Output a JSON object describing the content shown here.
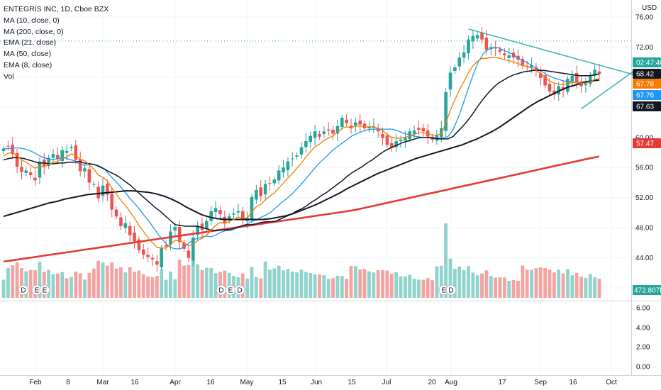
{
  "header": {
    "title": "ENTEGRIS INC, 1D, Cboe BZX",
    "currency": "USD"
  },
  "legend": [
    "MA (10, close, 0)",
    "MA (200, close, 0)",
    "EMA (21, close)",
    "MA (50, close)",
    "EMA (8, close)",
    "Vol"
  ],
  "colors": {
    "up": "#26a69a",
    "down": "#ef5350",
    "ma10": "#2196f3",
    "ma200": "#e53935",
    "ema21": "#131722",
    "ma50": "#131722",
    "ema8": "#f57c00",
    "trend": "#3fb8b0",
    "vol_up": "#8fd3cc",
    "vol_down": "#f5a3a1"
  },
  "price_tags": [
    {
      "text": "02:47:48",
      "value": 72.8,
      "color": "#26a69a"
    },
    {
      "text": "68.42",
      "value": 68.42,
      "color": "#131722"
    },
    {
      "text": "67.78",
      "value": 67.78,
      "color": "#f57c00"
    },
    {
      "text": "67.76",
      "value": 67.76,
      "color": "#2196f3"
    },
    {
      "text": "67.63",
      "value": 67.63,
      "color": "#131722"
    },
    {
      "text": "57.47",
      "value": 57.47,
      "color": "#e53935"
    }
  ],
  "volume_tag": "472.807K",
  "event_markers": [
    {
      "label": "D",
      "date": "Feb 1"
    },
    {
      "label": "E",
      "date": "Feb 4"
    },
    {
      "label": "E",
      "date": "Feb 8"
    },
    {
      "label": "D",
      "date": "Apr 26"
    },
    {
      "label": "E",
      "date": "May 7"
    },
    {
      "label": "D",
      "date": "May 10"
    },
    {
      "label": "E",
      "date": "Jul 28"
    },
    {
      "label": "D",
      "date": "Jul 29"
    }
  ],
  "chart_data": {
    "type": "candlestick",
    "title": "ENTEGRIS INC, 1D, Cboe BZX",
    "price_axis": {
      "ticks": [
        "76.00",
        "72.00",
        "68.00",
        "64.00",
        "60.00",
        "56.00",
        "52.00",
        "48.00",
        "44.00",
        "40.00"
      ],
      "ylim": [
        38.5,
        77.5
      ]
    },
    "oscillator_axis": {
      "ticks": [
        "6.00",
        "4.00",
        "2.00",
        "0.00"
      ]
    },
    "time_axis": [
      "Feb",
      "8",
      "Mar",
      "16",
      "Apr",
      "16",
      "May",
      "15",
      "Jun",
      "15",
      "Jul",
      "20",
      "Aug",
      "17",
      "Sep",
      "16",
      "Oct"
    ],
    "series": [
      {
        "name": "Price",
        "kind": "candles",
        "close": [
          58.5,
          58.8,
          57.8,
          56.1,
          55.4,
          55.6,
          55.0,
          54.3,
          56.8,
          56.1,
          57.3,
          57.8,
          57.1,
          58.3,
          58.2,
          58.7,
          57.0,
          55.5,
          55.9,
          54.0,
          53.8,
          51.9,
          53.6,
          52.4,
          50.4,
          49.5,
          48.2,
          48.6,
          47.0,
          46.2,
          45.0,
          44.4,
          44.1,
          43.8,
          43.1,
          45.3,
          45.5,
          47.5,
          48.1,
          46.1,
          45.2,
          44.0,
          46.7,
          48.3,
          47.7,
          48.9,
          50.2,
          50.6,
          49.8,
          48.6,
          49.5,
          49.9,
          50.2,
          49.0,
          49.3,
          52.1,
          53.0,
          52.2,
          53.8,
          53.9,
          54.4,
          55.6,
          56.0,
          56.8,
          57.2,
          57.6,
          58.7,
          59.5,
          60.2,
          60.8,
          60.1,
          60.8,
          60.9,
          60.5,
          61.5,
          62.6,
          61.9,
          61.2,
          62.0,
          61.7,
          61.2,
          61.4,
          61.5,
          60.8,
          59.9,
          59.0,
          58.6,
          59.5,
          59.7,
          60.0,
          60.8,
          60.9,
          61.0,
          60.8,
          60.1,
          59.7,
          60.3,
          61.2,
          66.0,
          68.6,
          69.3,
          70.6,
          71.3,
          73.0,
          73.5,
          73.6,
          73.0,
          71.6,
          72.0,
          71.8,
          71.4,
          70.9,
          70.9,
          70.6,
          70.3,
          69.5,
          69.4,
          69.6,
          68.9,
          67.9,
          66.9,
          66.1,
          65.7,
          66.8,
          66.3,
          67.8,
          68.2,
          67.2,
          66.8,
          67.1,
          68.3,
          69.0,
          68.42
        ]
      },
      {
        "name": "MA 10",
        "kind": "line",
        "values": [
          58.5,
          58.5,
          58.6,
          58.6,
          58.5,
          58.3,
          58.0,
          57.6,
          57.3,
          57.1,
          57.1,
          57.2,
          57.3,
          57.1,
          56.9,
          56.5,
          56.3,
          56.4,
          56.4,
          56.2,
          55.8,
          55.0,
          54.3,
          53.6,
          52.8,
          51.9,
          51.2,
          50.4,
          49.5,
          48.7,
          47.7,
          46.8,
          46.0,
          45.4,
          45.2,
          45.2,
          45.6,
          46.1,
          46.5,
          46.7,
          46.9,
          46.8,
          47.0,
          47.4,
          47.6,
          47.6,
          47.9,
          48.1,
          48.4,
          48.8,
          49.0,
          49.4,
          49.7,
          50.1,
          50.7,
          51.3,
          51.8,
          52.4,
          53.1,
          53.8,
          54.6,
          55.4,
          56.2,
          56.9,
          57.5,
          58.2,
          58.7,
          59.2,
          59.7,
          60.2,
          60.5,
          60.8,
          61.0,
          61.1,
          61.1,
          61.1,
          61.1,
          61.1,
          60.9,
          60.6,
          60.4,
          60.2,
          60.1,
          60.0,
          60.0,
          60.0,
          59.9,
          59.9,
          60.1,
          61.0,
          62.5,
          64.4,
          66.4,
          68.3,
          70.0,
          71.1,
          71.7,
          71.9,
          71.9,
          71.6,
          71.3,
          71.0,
          70.5,
          70.2,
          69.8,
          69.4,
          69.0,
          68.6,
          68.2,
          67.9,
          67.7,
          67.5,
          67.4,
          67.3,
          67.3,
          67.4,
          67.5,
          67.6,
          67.76
        ]
      },
      {
        "name": "MA 200",
        "kind": "line",
        "values": [
          43.5,
          43.7,
          43.9,
          44.1,
          44.3,
          44.5,
          44.7,
          44.9,
          45.1,
          45.3,
          45.5,
          45.7,
          45.9,
          46.1,
          46.3,
          46.5,
          46.7,
          46.9,
          47.1,
          47.3,
          47.5,
          47.7,
          47.9,
          48.1,
          48.3,
          48.5,
          48.7,
          48.9,
          49.1,
          49.3,
          49.5,
          49.7,
          49.9,
          50.1,
          50.3,
          50.6,
          50.9,
          51.2,
          51.5,
          51.8,
          52.1,
          52.4,
          52.7,
          53.0,
          53.3,
          53.6,
          53.9,
          54.2,
          54.5,
          54.8,
          55.1,
          55.4,
          55.7,
          56.0,
          56.3,
          56.6,
          56.9,
          57.2,
          57.47
        ]
      },
      {
        "name": "EMA 21",
        "kind": "line",
        "values": [
          57.0,
          57.2,
          57.3,
          57.3,
          57.2,
          57.0,
          56.8,
          56.6,
          56.6,
          56.5,
          56.5,
          56.6,
          56.6,
          56.7,
          56.7,
          56.8,
          56.6,
          56.5,
          56.4,
          56.1,
          55.8,
          55.4,
          55.1,
          54.7,
          54.2,
          53.7,
          53.1,
          52.5,
          51.9,
          51.3,
          50.7,
          50.2,
          49.6,
          49.0,
          48.4,
          48.3,
          48.2,
          48.2,
          48.2,
          48.1,
          47.9,
          47.7,
          47.6,
          47.7,
          47.7,
          47.8,
          48.0,
          48.2,
          48.4,
          48.4,
          48.5,
          48.7,
          48.8,
          48.8,
          48.9,
          49.2,
          49.5,
          49.8,
          50.2,
          50.5,
          50.9,
          51.4,
          51.8,
          52.3,
          52.7,
          53.2,
          53.7,
          54.2,
          54.8,
          55.3,
          55.7,
          56.1,
          56.6,
          57.0,
          57.5,
          58.0,
          58.4,
          58.7,
          59.0,
          59.3,
          59.5,
          59.7,
          59.9,
          60.0,
          60.0,
          59.9,
          59.8,
          59.8,
          59.8,
          60.1,
          60.8,
          61.5,
          62.3,
          63.2,
          64.2,
          65.1,
          65.9,
          66.6,
          67.2,
          67.6,
          68.0,
          68.3,
          68.5,
          68.7,
          68.8,
          68.9,
          68.9,
          68.9,
          68.8,
          68.7,
          68.6,
          68.5,
          68.4,
          68.3,
          68.2,
          68.2,
          68.2,
          68.3,
          68.42
        ]
      },
      {
        "name": "MA 50",
        "kind": "line",
        "values": [
          49.5,
          49.8,
          50.1,
          50.4,
          50.7,
          51.0,
          51.3,
          51.5,
          51.8,
          52.0,
          52.2,
          52.4,
          52.5,
          52.6,
          52.7,
          52.8,
          52.9,
          52.9,
          52.8,
          52.7,
          52.5,
          52.2,
          51.8,
          51.3,
          50.7,
          50.2,
          49.7,
          49.4,
          49.2,
          49.1,
          49.1,
          49.1,
          49.1,
          49.1,
          49.1,
          49.2,
          49.4,
          49.6,
          49.9,
          50.3,
          50.7,
          51.1,
          51.6,
          52.1,
          52.6,
          53.2,
          53.7,
          54.2,
          54.7,
          55.2,
          55.6,
          56.0,
          56.4,
          56.8,
          57.2,
          57.5,
          57.8,
          58.1,
          58.4,
          58.7,
          59.0,
          59.4,
          59.8,
          60.3,
          60.8,
          61.4,
          62.1,
          62.8,
          63.5,
          64.2,
          64.8,
          65.3,
          65.8,
          66.3,
          66.7,
          67.0,
          67.3,
          67.5,
          67.63
        ]
      },
      {
        "name": "EMA 8",
        "kind": "line",
        "values": [
          57.5,
          57.9,
          58.0,
          57.5,
          57.0,
          56.7,
          56.3,
          55.9,
          56.2,
          56.1,
          56.4,
          56.7,
          56.8,
          57.2,
          57.4,
          57.8,
          57.6,
          57.1,
          56.9,
          56.3,
          55.8,
          55.0,
          54.7,
          54.2,
          53.3,
          52.5,
          51.6,
          51.0,
          50.1,
          49.3,
          48.3,
          47.5,
          46.7,
          46.0,
          45.4,
          45.3,
          45.3,
          45.8,
          46.3,
          46.3,
          46.0,
          45.6,
          45.8,
          46.3,
          46.6,
          47.0,
          47.7,
          48.3,
          48.7,
          48.6,
          48.8,
          49.1,
          49.4,
          49.3,
          49.3,
          50.1,
          50.8,
          51.1,
          51.7,
          52.2,
          52.6,
          53.3,
          53.9,
          54.6,
          55.2,
          55.9,
          56.6,
          57.4,
          58.1,
          58.8,
          59.1,
          59.6,
          59.9,
          60.2,
          60.7,
          61.2,
          61.4,
          61.3,
          61.5,
          61.5,
          61.4,
          61.4,
          61.4,
          61.2,
          60.9,
          60.4,
          60.0,
          59.9,
          59.9,
          60.0,
          60.2,
          60.4,
          60.6,
          60.6,
          60.5,
          60.3,
          60.3,
          60.5,
          61.9,
          63.6,
          65.0,
          66.3,
          67.4,
          68.6,
          69.5,
          70.1,
          70.5,
          70.5,
          70.6,
          70.6,
          70.5,
          70.3,
          70.2,
          70.0,
          69.8,
          69.6,
          69.4,
          69.2,
          68.9,
          68.5,
          68.0,
          67.5,
          67.2,
          67.1,
          67.0,
          67.2,
          67.3,
          67.3,
          67.2,
          67.2,
          67.4,
          67.7,
          67.78
        ]
      }
    ],
    "trendlines": [
      {
        "from": [
          "Aug 2",
          74.4
        ],
        "to": [
          "Sep 30",
          68.3
        ]
      },
      {
        "from": [
          "Sep 7",
          63.8
        ],
        "to": [
          "Sep 30",
          68.9
        ]
      }
    ],
    "grid": true
  }
}
